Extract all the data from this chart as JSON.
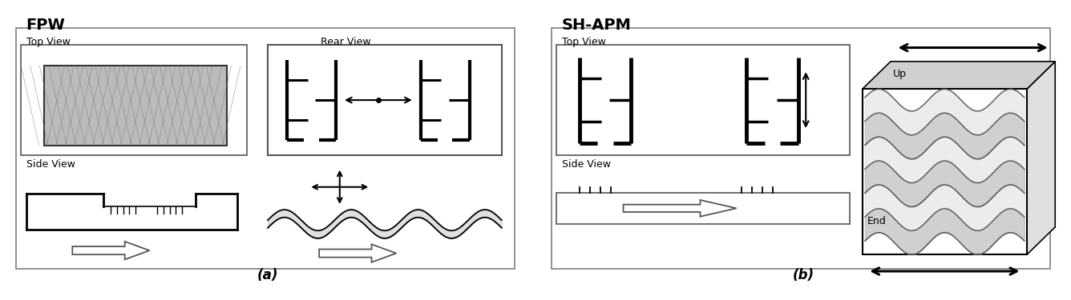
{
  "fig_width": 13.36,
  "fig_height": 3.75,
  "dpi": 100,
  "bg_color": "#ffffff",
  "panel_a_label": "(a)",
  "panel_b_label": "(b)",
  "fpw_title": "FPW",
  "shapm_title": "SH-APM",
  "top_view_label": "Top View",
  "side_view_label": "Side View",
  "rear_view_label": "Rear View",
  "up_label": "Up",
  "end_label": "End",
  "gray_hatch": "#aaaaaa",
  "dark_gray": "#555555",
  "light_gray": "#d8d8d8",
  "mid_gray": "#b0b0b0"
}
